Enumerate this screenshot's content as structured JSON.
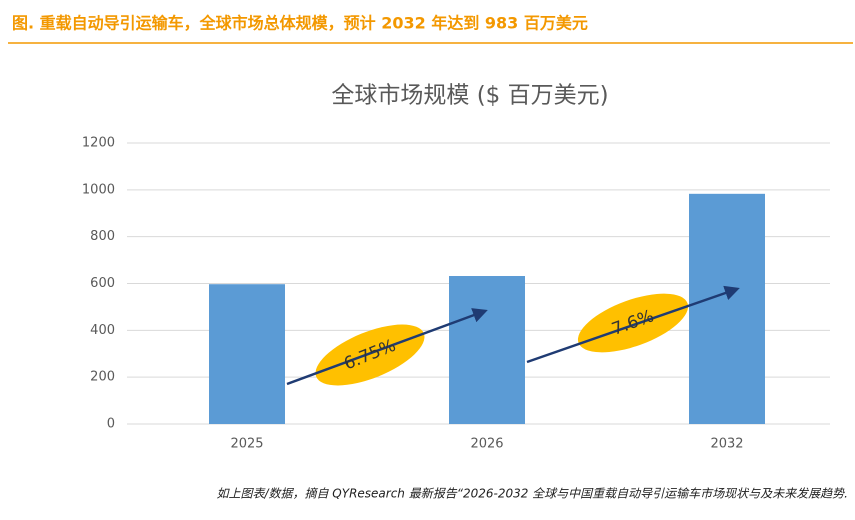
{
  "chart_data": {
    "type": "bar",
    "header": "图.     重载自动导引运输车，全球市场总体规模，预计 2032 年达到 983 百万美元",
    "title": "全球市场规模 ($ 百万美元)",
    "categories": [
      "2025",
      "2026",
      "2032"
    ],
    "values": [
      597,
      632,
      983
    ],
    "color": "#5b9bd5",
    "ylim": [
      0,
      1200
    ],
    "yticks": [
      0,
      200,
      400,
      600,
      800,
      1000,
      1200
    ],
    "grid": true,
    "annotations": [
      "6.75%",
      "7.6%"
    ],
    "footer": "如上图表/数据，摘自 QYResearch 最新报告“2026-2032 全球与中国重载自动导引运输车市场现状与及未来发展趋势."
  }
}
